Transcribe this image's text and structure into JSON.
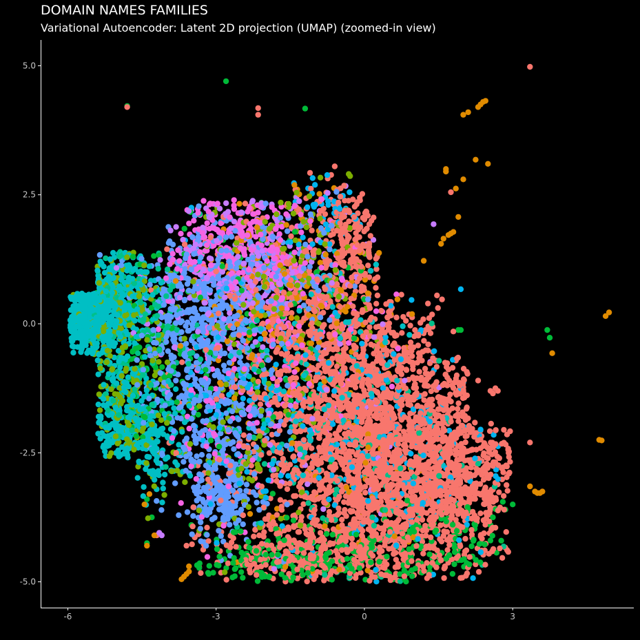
{
  "chart_data": {
    "type": "scatter",
    "title": "DOMAIN NAMES FAMILIES",
    "subtitle": "Variational Autoencoder: Latent 2D projection (UMAP) (zoomed-in view)",
    "xlabel": "",
    "ylabel": "",
    "xlim": [
      -6.55,
      5.45
    ],
    "ylim": [
      -5.5,
      5.5
    ],
    "x_ticks": [
      -6,
      -3,
      0,
      3
    ],
    "x_tick_labels": [
      "-6",
      "-3",
      "0",
      "3"
    ],
    "y_ticks": [
      5,
      2.5,
      0,
      -2.5,
      -5
    ],
    "y_tick_labels": [
      "5.0",
      "2.5",
      "0.0",
      "-2.5",
      "-5.0"
    ],
    "grid": false,
    "legend": "none",
    "background": "#000000",
    "series": [
      {
        "color": "#F8766D",
        "clusters": [
          {
            "cx": 0.1,
            "cy": -2.8,
            "sx": 1.35,
            "sy": 1.25,
            "n": 1500
          },
          {
            "cx": 1.0,
            "cy": -2.2,
            "sx": 1.1,
            "sy": 1.3,
            "n": 700
          },
          {
            "cx": -0.6,
            "cy": -0.6,
            "sx": 0.8,
            "sy": 0.9,
            "n": 400
          },
          {
            "cx": -0.3,
            "cy": 1.6,
            "sx": 0.35,
            "sy": 0.6,
            "n": 180
          },
          {
            "cx": -1.8,
            "cy": 0.8,
            "sx": 0.9,
            "sy": 0.9,
            "n": 220
          },
          {
            "cx": 1.8,
            "cy": -3.2,
            "sx": 0.6,
            "sy": 0.7,
            "n": 250
          },
          {
            "cx": -0.8,
            "cy": -4.5,
            "sx": 1.2,
            "sy": 0.3,
            "n": 250
          }
        ],
        "points": [
          [
            3.35,
            4.98
          ],
          [
            -2.15,
            4.18
          ],
          [
            -2.15,
            4.05
          ],
          [
            -4.8,
            4.2
          ],
          [
            2.55,
            -1.3
          ],
          [
            2.65,
            -1.25
          ],
          [
            2.6,
            -1.35
          ],
          [
            2.7,
            -1.3
          ],
          [
            1.75,
            2.55
          ],
          [
            3.35,
            -2.3
          ],
          [
            1.8,
            -0.15
          ],
          [
            2.3,
            -1.1
          ],
          [
            -0.6,
            3.05
          ],
          [
            -4.2,
            -4.1
          ],
          [
            -3.6,
            -4.3
          ]
        ]
      },
      {
        "color": "#E08B00",
        "clusters": [
          {
            "cx": -1.4,
            "cy": 0.5,
            "sx": 1.0,
            "sy": 1.1,
            "n": 180
          },
          {
            "cx": -0.5,
            "cy": -3.5,
            "sx": 1.0,
            "sy": 1.0,
            "n": 50
          }
        ],
        "points": [
          [
            2.0,
            4.05
          ],
          [
            2.1,
            4.1
          ],
          [
            2.3,
            4.2
          ],
          [
            2.4,
            4.3
          ],
          [
            2.45,
            4.32
          ],
          [
            2.35,
            4.25
          ],
          [
            2.25,
            3.18
          ],
          [
            2.5,
            3.1
          ],
          [
            1.65,
            3.0
          ],
          [
            1.65,
            2.95
          ],
          [
            1.85,
            2.62
          ],
          [
            2.0,
            2.8
          ],
          [
            1.9,
            2.07
          ],
          [
            1.6,
            1.65
          ],
          [
            1.7,
            1.72
          ],
          [
            1.8,
            1.78
          ],
          [
            1.75,
            1.75
          ],
          [
            1.55,
            1.55
          ],
          [
            1.2,
            1.22
          ],
          [
            4.95,
            0.22
          ],
          [
            4.88,
            0.15
          ],
          [
            3.8,
            -0.57
          ],
          [
            4.75,
            -2.25
          ],
          [
            4.8,
            -2.26
          ],
          [
            3.45,
            -3.25
          ],
          [
            3.55,
            -3.28
          ],
          [
            3.6,
            -3.25
          ],
          [
            3.5,
            -3.28
          ],
          [
            3.35,
            -3.15
          ],
          [
            -3.55,
            -4.8
          ],
          [
            -3.6,
            -4.85
          ],
          [
            -3.65,
            -4.9
          ],
          [
            -3.55,
            -4.7
          ],
          [
            -3.7,
            -4.95
          ],
          [
            -4.4,
            -4.3
          ],
          [
            -4.35,
            -3.3
          ],
          [
            -4.45,
            -3.5
          ],
          [
            -4.25,
            -4.1
          ]
        ]
      },
      {
        "color": "#7CAE00",
        "clusters": [
          {
            "cx": -5.0,
            "cy": 0.3,
            "sx": 0.45,
            "sy": 0.5,
            "n": 120
          },
          {
            "cx": -4.8,
            "cy": -1.7,
            "sx": 0.4,
            "sy": 0.8,
            "n": 130
          },
          {
            "cx": -1.5,
            "cy": 1.3,
            "sx": 0.9,
            "sy": 0.9,
            "n": 160
          },
          {
            "cx": -2.5,
            "cy": -2.5,
            "sx": 0.8,
            "sy": 1.0,
            "n": 100
          }
        ],
        "points": []
      },
      {
        "color": "#00BA38",
        "clusters": [
          {
            "cx": -1.2,
            "cy": -4.6,
            "sx": 1.3,
            "sy": 0.3,
            "n": 220
          },
          {
            "cx": 1.5,
            "cy": -4.3,
            "sx": 0.6,
            "sy": 0.5,
            "n": 100
          },
          {
            "cx": -4.3,
            "cy": -0.6,
            "sx": 0.5,
            "sy": 0.8,
            "n": 80
          },
          {
            "cx": -2.0,
            "cy": 0.0,
            "sx": 1.0,
            "sy": 1.5,
            "n": 100
          }
        ],
        "points": [
          [
            -2.8,
            4.7
          ],
          [
            -1.2,
            4.17
          ],
          [
            -4.8,
            4.22
          ],
          [
            3.7,
            -0.12
          ],
          [
            3.75,
            -0.27
          ],
          [
            1.9,
            -0.12
          ],
          [
            1.95,
            -0.12
          ],
          [
            2.85,
            -3.6
          ],
          [
            3.0,
            -3.5
          ],
          [
            2.8,
            -3.45
          ],
          [
            2.6,
            -3.75
          ],
          [
            2.55,
            -4.2
          ],
          [
            -4.4,
            -3.4
          ],
          [
            -4.3,
            -3.75
          ],
          [
            -4.4,
            -4.25
          ],
          [
            -3.5,
            -3.9
          ]
        ]
      },
      {
        "color": "#00C08B",
        "clusters": [
          {
            "cx": -4.5,
            "cy": -0.3,
            "sx": 0.8,
            "sy": 1.0,
            "n": 150
          },
          {
            "cx": -0.5,
            "cy": -3.0,
            "sx": 1.5,
            "sy": 1.3,
            "n": 100
          }
        ],
        "points": []
      },
      {
        "color": "#00BFC4",
        "clusters": [
          {
            "cx": -5.6,
            "cy": 0.15,
            "sx": 0.35,
            "sy": 0.45,
            "n": 450
          },
          {
            "cx": -5.0,
            "cy": 0.6,
            "sx": 0.4,
            "sy": 0.4,
            "n": 200
          },
          {
            "cx": -4.9,
            "cy": -1.8,
            "sx": 0.35,
            "sy": 0.8,
            "n": 220
          },
          {
            "cx": -4.3,
            "cy": -2.3,
            "sx": 0.4,
            "sy": 0.5,
            "n": 120
          },
          {
            "cx": -1.2,
            "cy": -1.5,
            "sx": 1.0,
            "sy": 1.2,
            "n": 150
          }
        ],
        "points": []
      },
      {
        "color": "#00B4F0",
        "clusters": [
          {
            "cx": 0.4,
            "cy": -2.5,
            "sx": 1.3,
            "sy": 1.4,
            "n": 220
          },
          {
            "cx": -0.8,
            "cy": 2.2,
            "sx": 0.4,
            "sy": 0.4,
            "n": 40
          },
          {
            "cx": -2.5,
            "cy": -1.0,
            "sx": 0.8,
            "sy": 1.2,
            "n": 80
          }
        ],
        "points": [
          [
            1.95,
            0.67
          ],
          [
            -3.5,
            2.2
          ],
          [
            -3.5,
            2.25
          ],
          [
            -0.3,
            2.55
          ],
          [
            2.35,
            -2.05
          ]
        ]
      },
      {
        "color": "#619CFF",
        "clusters": [
          {
            "cx": -3.0,
            "cy": -1.3,
            "sx": 0.6,
            "sy": 1.3,
            "n": 450
          },
          {
            "cx": -3.0,
            "cy": 0.8,
            "sx": 0.8,
            "sy": 0.6,
            "n": 250
          },
          {
            "cx": -2.9,
            "cy": -3.4,
            "sx": 0.3,
            "sy": 0.35,
            "n": 150
          },
          {
            "cx": -3.8,
            "cy": -0.5,
            "sx": 0.4,
            "sy": 0.8,
            "n": 120
          },
          {
            "cx": -1.5,
            "cy": 1.0,
            "sx": 0.7,
            "sy": 0.8,
            "n": 100
          }
        ],
        "points": []
      },
      {
        "color": "#C77CFF",
        "clusters": [
          {
            "cx": -2.5,
            "cy": 1.2,
            "sx": 0.9,
            "sy": 0.7,
            "n": 200
          },
          {
            "cx": -1.2,
            "cy": -2.0,
            "sx": 1.2,
            "sy": 1.5,
            "n": 60
          }
        ],
        "points": [
          [
            1.4,
            1.93
          ],
          [
            -4.1,
            -4.1
          ],
          [
            -4.15,
            -4.05
          ]
        ]
      },
      {
        "color": "#F564E3",
        "clusters": [
          {
            "cx": -2.6,
            "cy": 1.5,
            "sx": 0.7,
            "sy": 0.6,
            "n": 250
          },
          {
            "cx": -1.5,
            "cy": 0.2,
            "sx": 0.9,
            "sy": 1.0,
            "n": 150
          },
          {
            "cx": -2.8,
            "cy": -1.8,
            "sx": 0.6,
            "sy": 1.0,
            "n": 80
          }
        ],
        "points": []
      }
    ]
  }
}
